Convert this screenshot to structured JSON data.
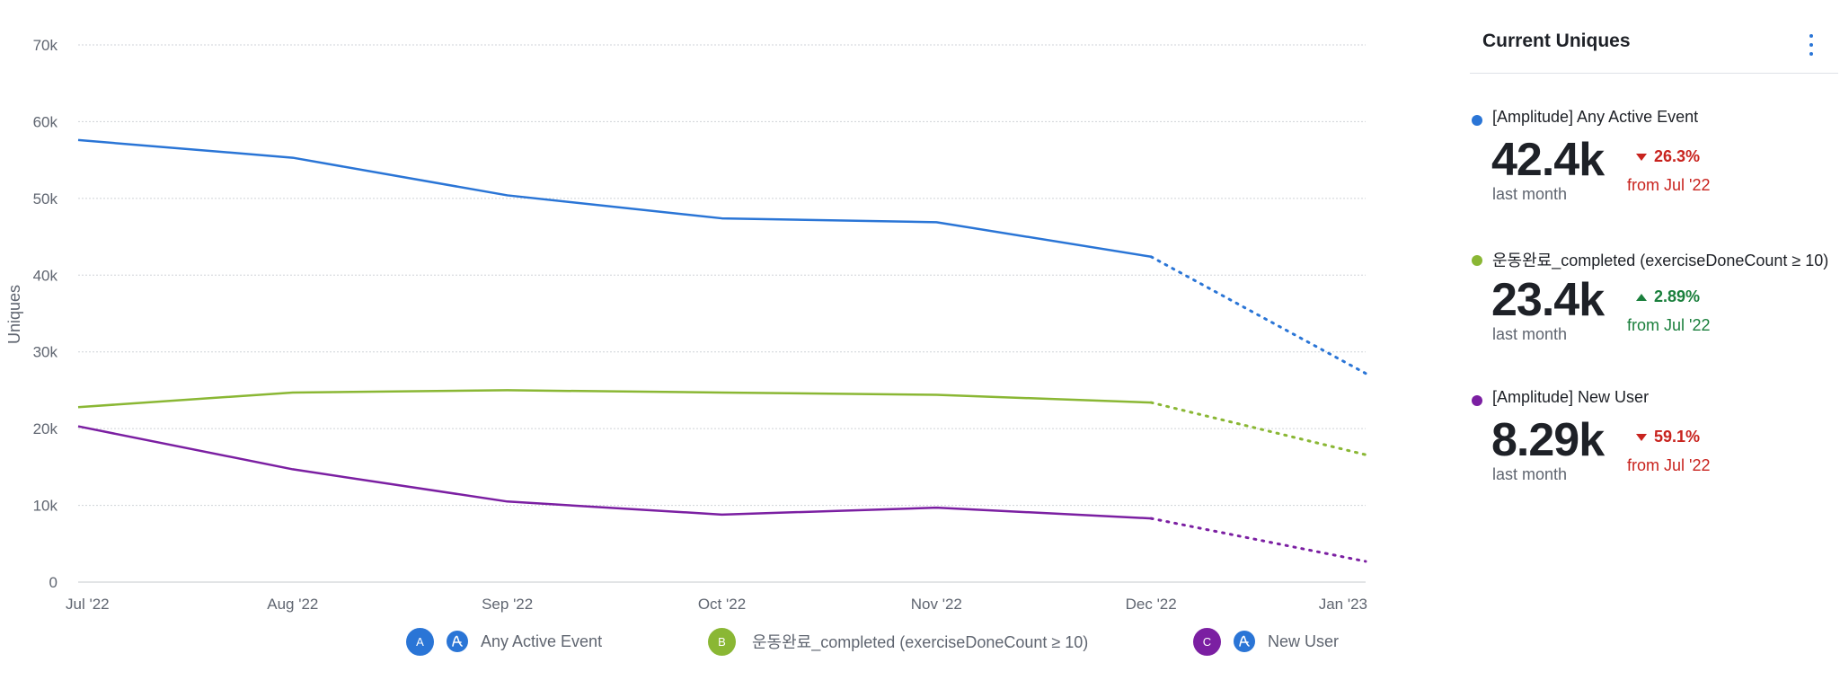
{
  "chart_data": {
    "type": "line",
    "ylabel": "Uniques",
    "categories": [
      "Jul '22",
      "Aug '22",
      "Sep '22",
      "Oct '22",
      "Nov '22",
      "Dec '22",
      "Jan '23"
    ],
    "y_ticks": [
      "0",
      "10k",
      "20k",
      "30k",
      "40k",
      "50k",
      "60k",
      "70k"
    ],
    "ylim": [
      0,
      70000
    ],
    "grid": true,
    "legend_position": "bottom",
    "projected_from_index": 5,
    "series": [
      {
        "name": "Any Active Event",
        "badge": "A",
        "amplitude_icon": true,
        "color": "#2a75d6",
        "values": [
          57600,
          55300,
          50400,
          47400,
          46900,
          42400,
          27200
        ]
      },
      {
        "name": "운동완료_completed (exerciseDoneCount ≥ 10)",
        "badge": "B",
        "amplitude_icon": false,
        "color": "#8ab734",
        "values": [
          22800,
          24700,
          25000,
          24700,
          24400,
          23400,
          16600
        ]
      },
      {
        "name": "New User",
        "badge": "C",
        "amplitude_icon": true,
        "color": "#7b1fa2",
        "values": [
          20300,
          14700,
          10500,
          8800,
          9700,
          8300,
          2700
        ]
      }
    ]
  },
  "panel": {
    "title": "Current Uniques",
    "menu_icon": "vertical-ellipsis-icon",
    "metrics": [
      {
        "name": "[Amplitude] Any Active Event",
        "value": "42.4k",
        "sub": "last month",
        "change": "26.3%",
        "direction": "down",
        "from": "from Jul '22",
        "color": "#2a75d6",
        "change_color": "#c8231e"
      },
      {
        "name": "운동완료_completed (exerciseDoneCount ≥ 10)",
        "value": "23.4k",
        "sub": "last month",
        "change": "2.89%",
        "direction": "up",
        "from": "from Jul '22",
        "color": "#8ab734",
        "change_color": "#1a7f3c"
      },
      {
        "name": "[Amplitude] New User",
        "value": "8.29k",
        "sub": "last month",
        "change": "59.1%",
        "direction": "down",
        "from": "from Jul '22",
        "color": "#7b1fa2",
        "change_color": "#c8231e"
      }
    ]
  }
}
